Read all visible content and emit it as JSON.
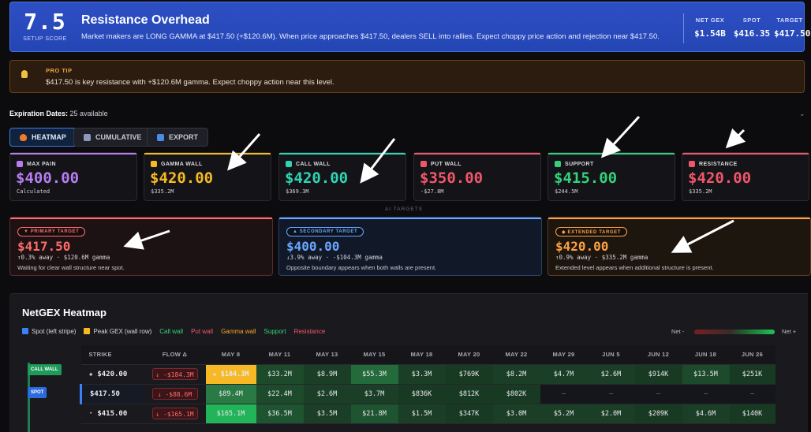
{
  "header": {
    "score": "7.5",
    "score_label": "SETUP SCORE",
    "title": "Resistance Overhead",
    "description": "Market makers are LONG GAMMA at $417.50 (+$120.6M). When price approaches $417.50, dealers SELL into rallies. Expect choppy price action and rejection near $417.50.",
    "stats": [
      {
        "label": "NET GEX",
        "value": "$1.54B"
      },
      {
        "label": "SPOT",
        "value": "$416.35"
      },
      {
        "label": "TARGET",
        "value": "$417.50"
      }
    ]
  },
  "protip": {
    "label": "PRO TIP",
    "text": "$417.50 is key resistance with +$120.6M gamma. Expect choppy action near this level."
  },
  "expiration": {
    "label": "Expiration Dates:",
    "value": "25 available"
  },
  "tabs": [
    {
      "label": "HEATMAP",
      "active": true
    },
    {
      "label": "CUMULATIVE",
      "active": false
    },
    {
      "label": "EXPORT",
      "active": false
    }
  ],
  "levels": [
    {
      "label": "MAX PAIN",
      "value": "$400.00",
      "sub": "Calculated",
      "color": "#b77cf2",
      "icon": "skull-icon"
    },
    {
      "label": "GAMMA WALL",
      "value": "$420.00",
      "sub": "$335.2M",
      "color": "#f5b922",
      "icon": "star-icon"
    },
    {
      "label": "CALL WALL",
      "value": "$420.00",
      "sub": "$369.3M",
      "color": "#2fd4b4",
      "icon": "phone-icon"
    },
    {
      "label": "PUT WALL",
      "value": "$350.00",
      "sub": "-$27.8M",
      "color": "#f0566a",
      "icon": "chart-down-icon"
    },
    {
      "label": "SUPPORT",
      "value": "$415.00",
      "sub": "$244.5M",
      "color": "#34d17a",
      "icon": "shield-icon"
    },
    {
      "label": "RESISTANCE",
      "value": "$420.00",
      "sub": "$335.2M",
      "color": "#f0566a",
      "icon": "no-entry-icon"
    }
  ],
  "ai_label": "AI TARGETS",
  "targets": [
    {
      "pill": "▼ PRIMARY TARGET",
      "value": "$417.50",
      "meta": "↑0.3% away · $120.6M gamma",
      "note": "Waiting for clear wall structure near spot.",
      "color": "#ff6b6b"
    },
    {
      "pill": "▲ SECONDARY TARGET",
      "value": "$400.00",
      "meta": "↓3.9% away · -$104.3M gamma",
      "note": "Opposite boundary appears when both walls are present.",
      "color": "#6aa6ff"
    },
    {
      "pill": "◆ EXTENDED TARGET",
      "value": "$420.00",
      "meta": "↑0.9% away · $335.2M gamma",
      "note": "Extended level appears when additional structure is present.",
      "color": "#ff9f43"
    }
  ],
  "heatmap": {
    "title": "NetGEX Heatmap",
    "legend": [
      {
        "label": "Spot (left stripe)",
        "color": "#3b82f6"
      },
      {
        "label": "Peak GEX (wall row)",
        "color": "#f6b925"
      },
      {
        "label": "Call wall",
        "color": "#34d17a"
      },
      {
        "label": "Put wall",
        "color": "#f0566a"
      },
      {
        "label": "Gamma wall",
        "color": "#f5a623"
      },
      {
        "label": "Support",
        "color": "#34d17a"
      },
      {
        "label": "Resistance",
        "color": "#f0566a"
      }
    ],
    "net_minus": "Net -",
    "net_plus": "Net +",
    "headers": [
      "STRIKE",
      "FLOW Δ",
      "MAY 8",
      "MAY 11",
      "MAY 13",
      "MAY 15",
      "MAY 18",
      "MAY 20",
      "MAY 22",
      "MAY 29",
      "JUN 5",
      "JUN 12",
      "JUN 18",
      "JUN 26"
    ],
    "rows": [
      {
        "strike": "★ $420.00",
        "flow": "↓ -$184.3M",
        "cells": [
          "★ $184.3M",
          "$33.2M",
          "$8.9M",
          "$55.3M",
          "$3.3M",
          "$769K",
          "$8.2M",
          "$4.7M",
          "$2.6M",
          "$914K",
          "$13.5M",
          "$251K"
        ]
      },
      {
        "strike": "$417.50",
        "flow": "↓ -$88.6M",
        "cells": [
          "$89.4M",
          "$22.4M",
          "$2.6M",
          "$3.7M",
          "$836K",
          "$812K",
          "$802K",
          "—",
          "—",
          "—",
          "—",
          "—"
        ]
      },
      {
        "strike": "· $415.00",
        "flow": "↓ -$165.1M",
        "cells": [
          "$165.1M",
          "$36.5M",
          "$3.5M",
          "$21.8M",
          "$1.5M",
          "$347K",
          "$3.0M",
          "$5.2M",
          "$2.0M",
          "$209K",
          "$4.6M",
          "$140K"
        ]
      }
    ],
    "side_badges": [
      {
        "label": "CALL WALL",
        "color": "#1f9a5a"
      },
      {
        "label": "SPOT",
        "color": "#2b6be0"
      }
    ]
  }
}
